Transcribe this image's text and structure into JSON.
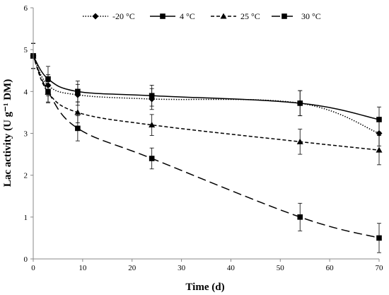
{
  "chart_data": {
    "type": "line",
    "title": "",
    "xlabel": "Time (d)",
    "ylabel": "Lac activity (U g⁻¹ DM)",
    "xlim": [
      0,
      70
    ],
    "ylim": [
      0,
      6
    ],
    "xticks": [
      0,
      10,
      20,
      30,
      40,
      50,
      60,
      70
    ],
    "yticks": [
      0,
      1,
      2,
      3,
      4,
      5,
      6
    ],
    "grid": false,
    "legend_position": "top",
    "x": [
      0,
      3,
      9,
      24,
      54,
      70
    ],
    "series": [
      {
        "name": "-20 °C",
        "marker": "diamond",
        "line_style": "dotted",
        "values": [
          4.85,
          4.15,
          3.92,
          3.82,
          3.72,
          3.0
        ],
        "errors": [
          0.3,
          0.25,
          0.25,
          0.25,
          0.3,
          0.3
        ]
      },
      {
        "name": "4 °C",
        "marker": "square",
        "line_style": "solid",
        "values": [
          4.85,
          4.3,
          4.0,
          3.9,
          3.72,
          3.33
        ],
        "errors": [
          0.3,
          0.3,
          0.25,
          0.25,
          0.3,
          0.3
        ]
      },
      {
        "name": "25 °C",
        "marker": "triangle",
        "line_style": "dashed",
        "values": [
          4.85,
          3.98,
          3.5,
          3.2,
          2.8,
          2.6
        ],
        "errors": [
          0.3,
          0.25,
          0.25,
          0.25,
          0.3,
          0.35
        ]
      },
      {
        "name": "30 °C",
        "marker": "square",
        "line_style": "long-dashed",
        "values": [
          4.85,
          4.0,
          3.12,
          2.4,
          1.0,
          0.5
        ],
        "errors": [
          0.3,
          0.25,
          0.3,
          0.25,
          0.33,
          0.35
        ]
      }
    ]
  }
}
